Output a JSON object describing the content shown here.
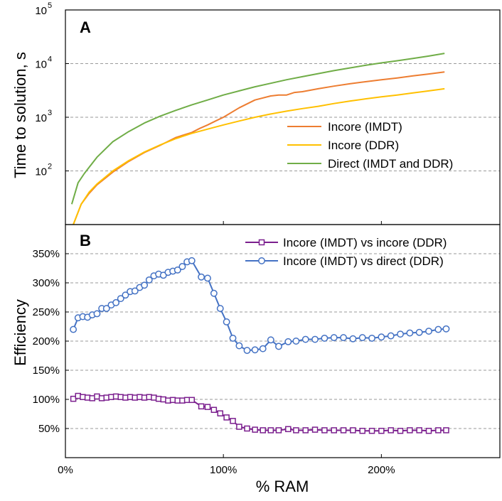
{
  "figure": {
    "x_axis_label": "% RAM"
  },
  "chart_data": [
    {
      "panel": "A",
      "type": "line",
      "y_scale": "log",
      "ylabel": "Time to solution, s",
      "xlim": [
        0,
        275
      ],
      "ylim": [
        10,
        100000
      ],
      "x_ticks": [
        0,
        100,
        200
      ],
      "x_tick_labels": [
        "0%",
        "100%",
        "200%"
      ],
      "y_ticks": [
        100,
        1000,
        10000,
        100000
      ],
      "y_tick_bases": [
        "10",
        "10",
        "10",
        "10"
      ],
      "y_tick_exponents": [
        "2",
        "3",
        "4",
        "5"
      ],
      "grid": "horizontal dashed at decades",
      "legend_position": "center-right",
      "series": [
        {
          "name": "Incore (IMDT)",
          "color": "#ED7D31",
          "x": [
            5,
            10,
            15,
            20,
            30,
            40,
            50,
            60,
            70,
            80,
            85,
            90,
            95,
            100,
            110,
            120,
            130,
            135,
            140,
            145,
            150,
            160,
            170,
            180,
            190,
            200,
            210,
            220,
            230,
            240
          ],
          "y": [
            10,
            24,
            38,
            55,
            95,
            150,
            220,
            300,
            420,
            520,
            620,
            720,
            850,
            1000,
            1500,
            2100,
            2500,
            2600,
            2600,
            2900,
            3000,
            3400,
            3800,
            4200,
            4600,
            5000,
            5400,
            5900,
            6400,
            7000
          ]
        },
        {
          "name": "Incore (DDR)",
          "color": "#FFC000",
          "x": [
            5,
            10,
            15,
            20,
            30,
            40,
            50,
            60,
            70,
            80,
            90,
            100,
            110,
            120,
            130,
            140,
            150,
            160,
            170,
            180,
            190,
            200,
            210,
            220,
            230,
            240
          ],
          "y": [
            10,
            24,
            40,
            57,
            100,
            155,
            225,
            305,
            400,
            500,
            600,
            720,
            850,
            1000,
            1150,
            1300,
            1450,
            1600,
            1800,
            2000,
            2200,
            2400,
            2600,
            2850,
            3100,
            3400
          ]
        },
        {
          "name": "Direct (IMDT and DDR)",
          "color": "#70AD47",
          "x": [
            4,
            8,
            12,
            20,
            30,
            40,
            50,
            60,
            70,
            80,
            90,
            100,
            110,
            120,
            130,
            140,
            150,
            160,
            170,
            180,
            190,
            200,
            210,
            220,
            230,
            240
          ],
          "y": [
            24,
            60,
            90,
            180,
            350,
            540,
            780,
            1050,
            1350,
            1700,
            2100,
            2600,
            3100,
            3700,
            4300,
            5000,
            5700,
            6500,
            7400,
            8300,
            9300,
            10300,
            11300,
            12500,
            13800,
            15500
          ]
        }
      ]
    },
    {
      "panel": "B",
      "type": "line",
      "ylabel": "Efficiency",
      "xlabel": "% RAM",
      "xlim": [
        0,
        275
      ],
      "ylim": [
        0,
        400
      ],
      "x_ticks": [
        0,
        100,
        200
      ],
      "x_tick_labels": [
        "0%",
        "100%",
        "200%"
      ],
      "y_ticks": [
        50,
        100,
        150,
        200,
        250,
        300,
        350
      ],
      "y_tick_labels": [
        "50%",
        "100%",
        "150%",
        "200%",
        "250%",
        "300%",
        "350%"
      ],
      "grid": "horizontal dashed",
      "legend_position": "top-right",
      "series": [
        {
          "name": "Incore (IMDT) vs incore (DDR)",
          "color": "#7B1F8E",
          "marker": "square",
          "x": [
            5,
            8,
            11,
            14,
            17,
            20,
            23,
            26,
            29,
            32,
            35,
            38,
            41,
            44,
            47,
            50,
            53,
            56,
            59,
            62,
            65,
            68,
            71,
            74,
            77,
            80,
            86,
            90,
            94,
            98,
            102,
            106,
            110,
            115,
            120,
            125,
            130,
            135,
            141,
            146,
            152,
            158,
            164,
            170,
            176,
            182,
            188,
            194,
            200,
            206,
            212,
            218,
            224,
            230,
            236,
            241
          ],
          "y": [
            101,
            106,
            104,
            103,
            102,
            105,
            102,
            103,
            104,
            105,
            104,
            103,
            104,
            103,
            104,
            103,
            104,
            103,
            101,
            100,
            98,
            99,
            98,
            98,
            99,
            99,
            88,
            87,
            82,
            76,
            69,
            63,
            53,
            50,
            48,
            47,
            47,
            47,
            49,
            47,
            47,
            48,
            47,
            47,
            47,
            47,
            46,
            46,
            46,
            47,
            46,
            47,
            47,
            46,
            47,
            47
          ]
        },
        {
          "name": "Incore (IMDT) vs direct (DDR)",
          "color": "#4472C4",
          "marker": "circle",
          "x": [
            5,
            8,
            11,
            14,
            17,
            20,
            23,
            26,
            29,
            32,
            35,
            38,
            41,
            44,
            47,
            50,
            53,
            56,
            59,
            62,
            65,
            68,
            71,
            74,
            77,
            80,
            86,
            90,
            94,
            98,
            102,
            106,
            110,
            115,
            120,
            125,
            130,
            135,
            141,
            146,
            152,
            158,
            164,
            170,
            176,
            182,
            188,
            194,
            200,
            206,
            212,
            218,
            224,
            230,
            236,
            241
          ],
          "y": [
            220,
            240,
            242,
            241,
            245,
            247,
            256,
            256,
            262,
            266,
            273,
            279,
            285,
            286,
            292,
            296,
            305,
            312,
            315,
            313,
            318,
            320,
            322,
            328,
            336,
            338,
            310,
            308,
            282,
            256,
            233,
            205,
            192,
            184,
            185,
            187,
            202,
            191,
            199,
            200,
            203,
            203,
            205,
            206,
            206,
            204,
            206,
            205,
            207,
            209,
            212,
            214,
            215,
            217,
            220,
            221
          ]
        }
      ]
    }
  ]
}
